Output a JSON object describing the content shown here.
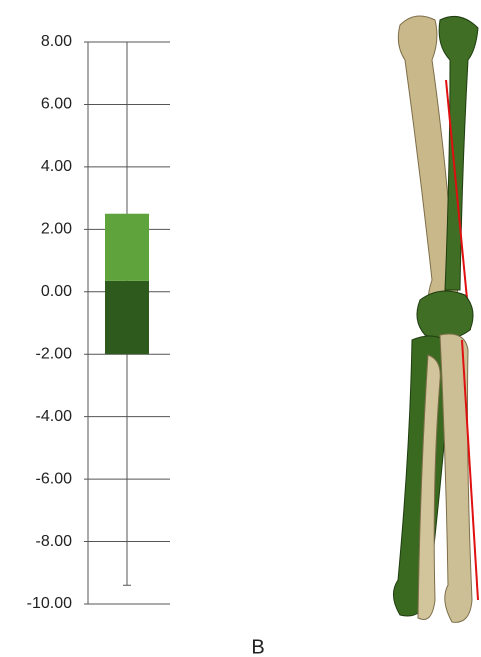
{
  "chart_data": {
    "type": "box",
    "label": "B",
    "box": {
      "min": -9.4,
      "q1": -2,
      "median": 0.35,
      "q3": 2.5,
      "max": 8
    },
    "lower_color": "#2f5a1e",
    "upper_color": "#5ea33c",
    "ylim": [
      -10,
      8
    ],
    "yticks": [
      {
        "value": -10,
        "label": "-10.00"
      },
      {
        "value": -8,
        "label": "-8.00"
      },
      {
        "value": -6,
        "label": "-6.00"
      },
      {
        "value": -4,
        "label": "-4.00"
      },
      {
        "value": -2,
        "label": "-2.00"
      },
      {
        "value": 0,
        "label": "0.00"
      },
      {
        "value": 2,
        "label": "2.00"
      },
      {
        "value": 4,
        "label": "4.00"
      },
      {
        "value": 6,
        "label": "6.00"
      },
      {
        "value": 8,
        "label": "8.00"
      }
    ]
  }
}
